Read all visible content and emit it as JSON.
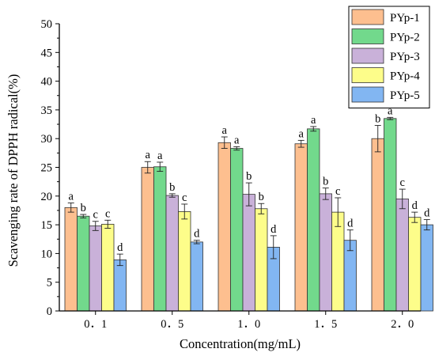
{
  "colors": {
    "PYp-1": "#fdbf8f",
    "PYp-2": "#72d98c",
    "PYp-3": "#c9b1d9",
    "PYp-4": "#fdfd8a",
    "PYp-5": "#82b6f2",
    "bar_stroke": "#333333",
    "axis": "#000000"
  },
  "chart_data": {
    "type": "bar",
    "title": "",
    "xlabel": "Concentration(mg/mL)",
    "ylabel": "Scavenging rate of DPPH radical(%)",
    "ylim": [
      0,
      50
    ],
    "ytick_step": 5,
    "categories": [
      "0.1",
      "0.5",
      "1.0",
      "1.5",
      "2.0"
    ],
    "category_labels": [
      "0．1",
      "0．5",
      "1．0",
      "1．5",
      "2．0"
    ],
    "legend_position": "top-right",
    "grid": false,
    "series": [
      {
        "name": "PYp-1",
        "values": [
          18.0,
          25.0,
          29.3,
          29.1,
          30.0
        ],
        "errors": [
          0.8,
          1.0,
          1.0,
          0.6,
          2.3
        ],
        "labels": [
          "a",
          "a",
          "a",
          "a",
          "b"
        ]
      },
      {
        "name": "PYp-2",
        "values": [
          16.5,
          25.1,
          28.3,
          31.7,
          33.5
        ],
        "errors": [
          0.3,
          0.8,
          0.3,
          0.4,
          0.2
        ],
        "labels": [
          "b",
          "a",
          "a",
          "a",
          "a"
        ]
      },
      {
        "name": "PYp-3",
        "values": [
          14.8,
          20.1,
          20.3,
          20.4,
          19.5
        ],
        "errors": [
          0.8,
          0.3,
          2.0,
          1.0,
          1.7
        ],
        "labels": [
          "c",
          "b",
          "b",
          "b",
          "c"
        ]
      },
      {
        "name": "PYp-4",
        "values": [
          15.1,
          17.3,
          17.8,
          17.2,
          16.3
        ],
        "errors": [
          0.7,
          1.3,
          0.9,
          2.5,
          0.9
        ],
        "labels": [
          "c",
          "c",
          "b",
          "c",
          "d"
        ]
      },
      {
        "name": "PYp-5",
        "values": [
          8.9,
          12.0,
          11.1,
          12.3,
          15.0
        ],
        "errors": [
          1.0,
          0.3,
          2.0,
          1.8,
          0.9
        ],
        "labels": [
          "d",
          "d",
          "d",
          "d",
          "d"
        ]
      }
    ]
  }
}
